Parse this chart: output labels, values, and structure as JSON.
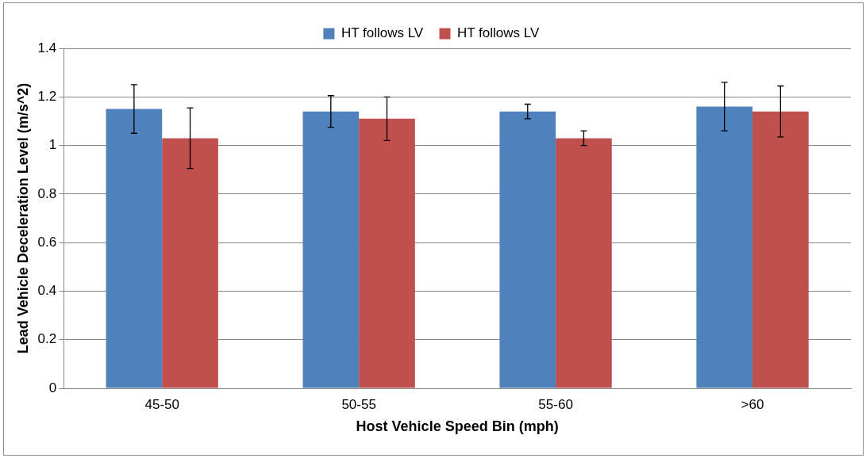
{
  "chart_data": {
    "type": "bar",
    "xlabel": "Host Vehicle Speed Bin (mph)",
    "ylabel": "Lead Vehicle Deceleration Level (m/s^2)",
    "categories": [
      "45-50",
      "50-55",
      "55-60",
      ">60"
    ],
    "series": [
      {
        "name": "HT follows LV",
        "color": "#4f81bd",
        "values": [
          1.15,
          1.14,
          1.14,
          1.16
        ],
        "errors": [
          0.1,
          0.065,
          0.03,
          0.1
        ]
      },
      {
        "name": "HT follows LV",
        "color": "#c0504d",
        "values": [
          1.03,
          1.11,
          1.03,
          1.14
        ],
        "errors": [
          0.125,
          0.09,
          0.03,
          0.105
        ]
      }
    ],
    "ylim": [
      0,
      1.4
    ],
    "yticks": [
      0,
      0.2,
      0.4,
      0.6,
      0.8,
      1,
      1.2,
      1.4
    ],
    "grid": "y",
    "legend": "top"
  }
}
